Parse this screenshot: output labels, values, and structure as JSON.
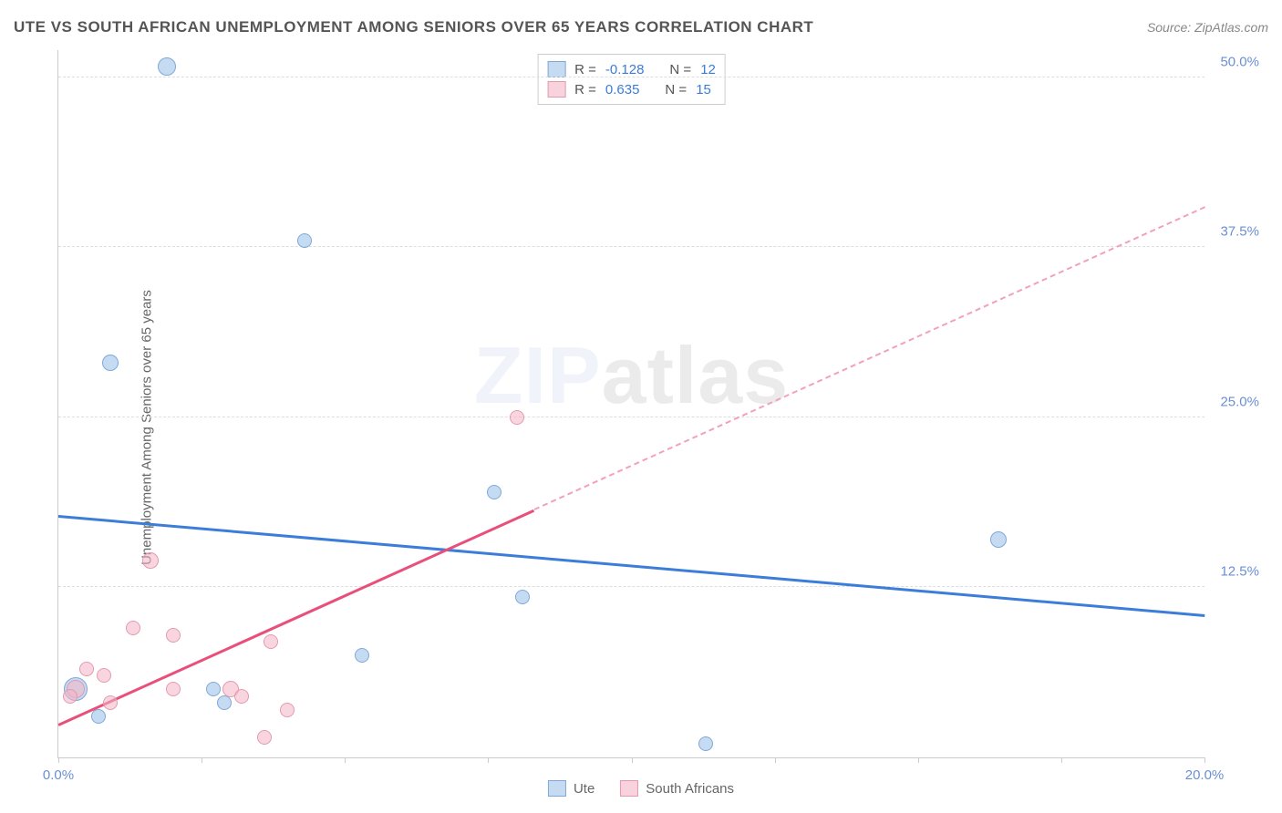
{
  "title": "UTE VS SOUTH AFRICAN UNEMPLOYMENT AMONG SENIORS OVER 65 YEARS CORRELATION CHART",
  "source_prefix": "Source: ",
  "source_name": "ZipAtlas.com",
  "y_axis_label": "Unemployment Among Seniors over 65 years",
  "watermark_a": "ZIP",
  "watermark_b": "atlas",
  "chart": {
    "type": "scatter",
    "xlim": [
      0,
      20
    ],
    "ylim": [
      0,
      52
    ],
    "x_ticks": [
      0,
      2.5,
      5,
      7.5,
      10,
      12.5,
      15,
      17.5,
      20
    ],
    "x_tick_labels": {
      "0": "0.0%",
      "20": "20.0%"
    },
    "y_ticks": [
      12.5,
      25,
      37.5,
      50
    ],
    "y_tick_labels": [
      "12.5%",
      "25.0%",
      "37.5%",
      "50.0%"
    ],
    "grid_color": "#dddddd",
    "background_color": "#ffffff",
    "series": [
      {
        "name": "Ute",
        "color_fill": "#9fc3ea",
        "color_stroke": "#7fa8d9",
        "reg_color": "#3b7dd8",
        "R": -0.128,
        "N": 12,
        "points": [
          {
            "x": 1.9,
            "y": 50.8,
            "r": 10
          },
          {
            "x": 4.3,
            "y": 38.0,
            "r": 8
          },
          {
            "x": 0.9,
            "y": 29.0,
            "r": 9
          },
          {
            "x": 7.6,
            "y": 19.5,
            "r": 8
          },
          {
            "x": 16.4,
            "y": 16.0,
            "r": 9
          },
          {
            "x": 8.1,
            "y": 11.8,
            "r": 8
          },
          {
            "x": 5.3,
            "y": 7.5,
            "r": 8
          },
          {
            "x": 2.9,
            "y": 4.0,
            "r": 8
          },
          {
            "x": 2.7,
            "y": 5.0,
            "r": 8
          },
          {
            "x": 0.3,
            "y": 5.0,
            "r": 13
          },
          {
            "x": 0.7,
            "y": 3.0,
            "r": 8
          },
          {
            "x": 11.3,
            "y": 1.0,
            "r": 8
          }
        ],
        "regression_line": {
          "x1": 0,
          "y1": 17.8,
          "x2": 20,
          "y2": 10.5
        }
      },
      {
        "name": "South Africans",
        "color_fill": "#f4b4c4",
        "color_stroke": "#e39ab0",
        "reg_color": "#e84f7a",
        "R": 0.635,
        "N": 15,
        "points": [
          {
            "x": 8.0,
            "y": 25.0,
            "r": 8
          },
          {
            "x": 1.6,
            "y": 14.5,
            "r": 9
          },
          {
            "x": 1.3,
            "y": 9.5,
            "r": 8
          },
          {
            "x": 2.0,
            "y": 9.0,
            "r": 8
          },
          {
            "x": 3.7,
            "y": 8.5,
            "r": 8
          },
          {
            "x": 0.5,
            "y": 6.5,
            "r": 8
          },
          {
            "x": 0.8,
            "y": 6.0,
            "r": 8
          },
          {
            "x": 0.3,
            "y": 5.0,
            "r": 10
          },
          {
            "x": 0.2,
            "y": 4.5,
            "r": 8
          },
          {
            "x": 2.0,
            "y": 5.0,
            "r": 8
          },
          {
            "x": 3.0,
            "y": 5.0,
            "r": 9
          },
          {
            "x": 3.2,
            "y": 4.5,
            "r": 8
          },
          {
            "x": 4.0,
            "y": 3.5,
            "r": 8
          },
          {
            "x": 3.6,
            "y": 1.5,
            "r": 8
          },
          {
            "x": 0.9,
            "y": 4.0,
            "r": 8
          }
        ],
        "regression_line": {
          "x1": 0,
          "y1": 2.5,
          "x2": 20,
          "y2": 40.5
        },
        "solid_until_x": 8.3
      }
    ]
  },
  "legend_top": {
    "r_label": "R =",
    "n_label": "N ="
  },
  "legend_bottom": [
    {
      "label": "Ute",
      "class": "blue"
    },
    {
      "label": "South Africans",
      "class": "pink"
    }
  ]
}
